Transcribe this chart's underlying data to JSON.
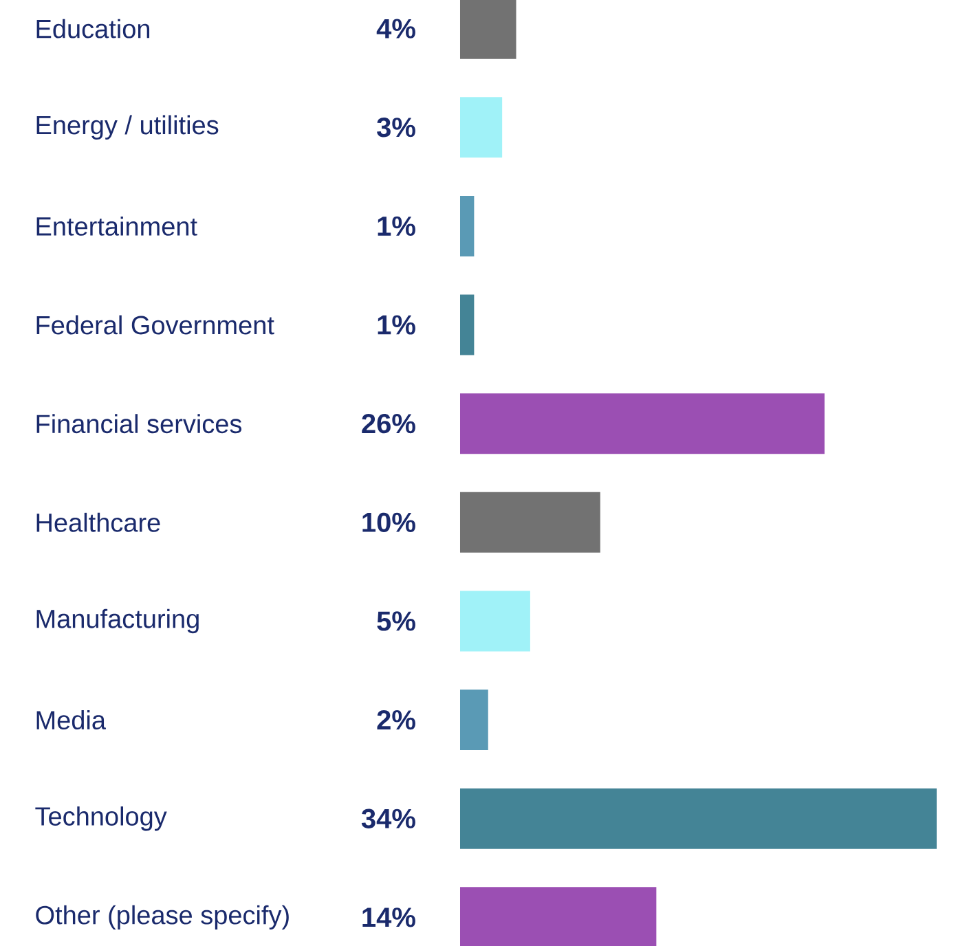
{
  "chart_data": {
    "type": "bar",
    "orientation": "horizontal",
    "categories": [
      "Education",
      "Energy / utilities",
      "Entertainment",
      "Federal Government",
      "Financial services",
      "Healthcare",
      "Manufacturing",
      "Media",
      "Technology",
      "Other (please specify)"
    ],
    "values": [
      4,
      3,
      1,
      1,
      26,
      10,
      5,
      2,
      34,
      14
    ],
    "colors": [
      "#727272",
      "#a0f2f8",
      "#5a9ab5",
      "#448496",
      "#9b4fb3",
      "#727272",
      "#a0f2f8",
      "#5a9ab5",
      "#448496",
      "#9b4fb3"
    ],
    "value_labels": [
      "4%",
      "3%",
      "1%",
      "1%",
      "26%",
      "10%",
      "5%",
      "2%",
      "34%",
      "14%"
    ],
    "xlim": [
      0,
      34
    ],
    "tick_labels": "y"
  }
}
